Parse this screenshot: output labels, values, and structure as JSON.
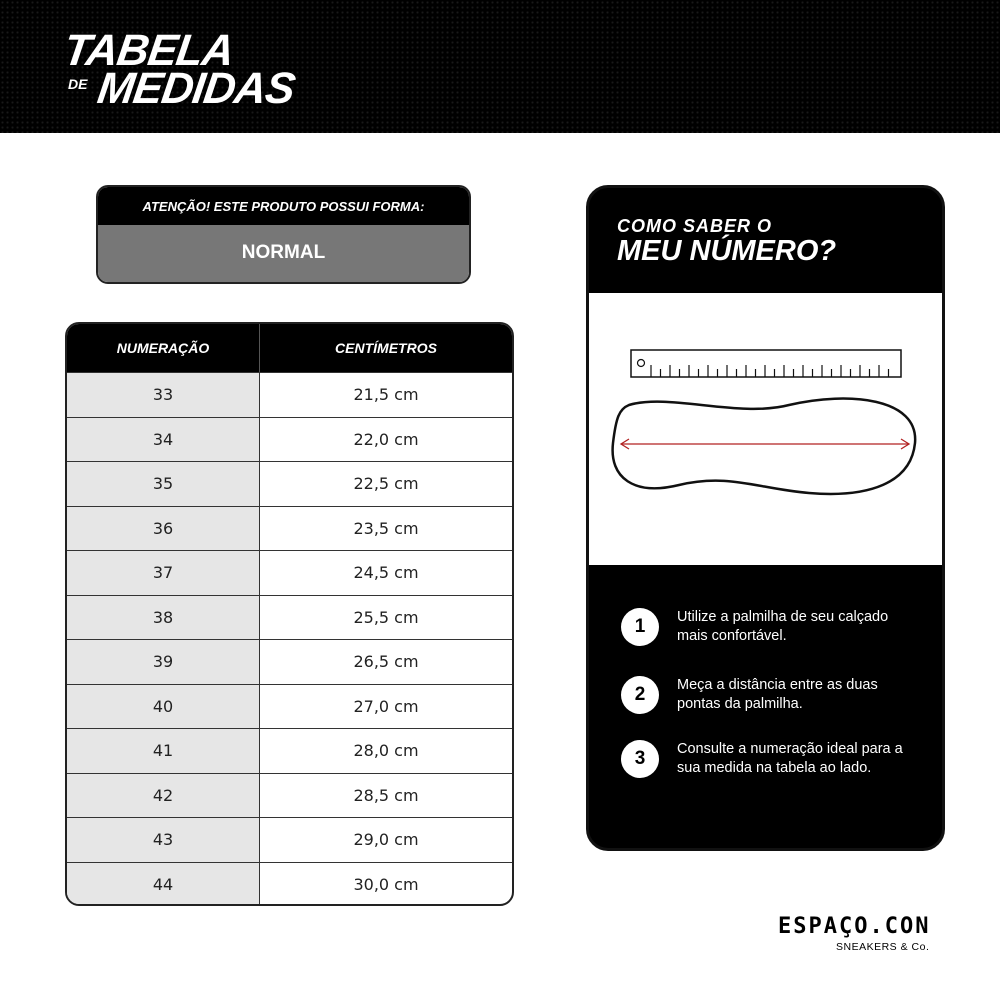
{
  "header": {
    "title_line1": "TABELA",
    "title_de": "DE",
    "title_line2": "MEDIDAS"
  },
  "attention": {
    "label_bold": "ATENÇÃO!",
    "label_rest": " ESTE PRODUTO POSSUI FORMA:",
    "value": "NORMAL"
  },
  "table": {
    "headers": [
      "NUMERAÇÃO",
      "CENTÍMETROS"
    ],
    "rows": [
      [
        "33",
        "21,5 cm"
      ],
      [
        "34",
        "22,0 cm"
      ],
      [
        "35",
        "22,5 cm"
      ],
      [
        "36",
        "23,5 cm"
      ],
      [
        "37",
        "24,5 cm"
      ],
      [
        "38",
        "25,5 cm"
      ],
      [
        "39",
        "26,5 cm"
      ],
      [
        "40",
        "27,0 cm"
      ],
      [
        "41",
        "28,0 cm"
      ],
      [
        "42",
        "28,5 cm"
      ],
      [
        "43",
        "29,0 cm"
      ],
      [
        "44",
        "30,0 cm"
      ]
    ]
  },
  "guide": {
    "title_line1": "COMO SABER O",
    "title_line2": "MEU NÚMERO?",
    "steps": [
      {
        "n": "1",
        "text": "Utilize a palmilha de seu calçado mais confortável."
      },
      {
        "n": "2",
        "text": "Meça a distância entre as duas pontas da palmilha."
      },
      {
        "n": "3",
        "text": "Consulte a numeração ideal para a sua medida na tabela ao lado."
      }
    ],
    "measure_color": "#b22222"
  },
  "brand": {
    "name": "ESPAÇO.CON",
    "tagline": "SNEAKERS & Co."
  }
}
